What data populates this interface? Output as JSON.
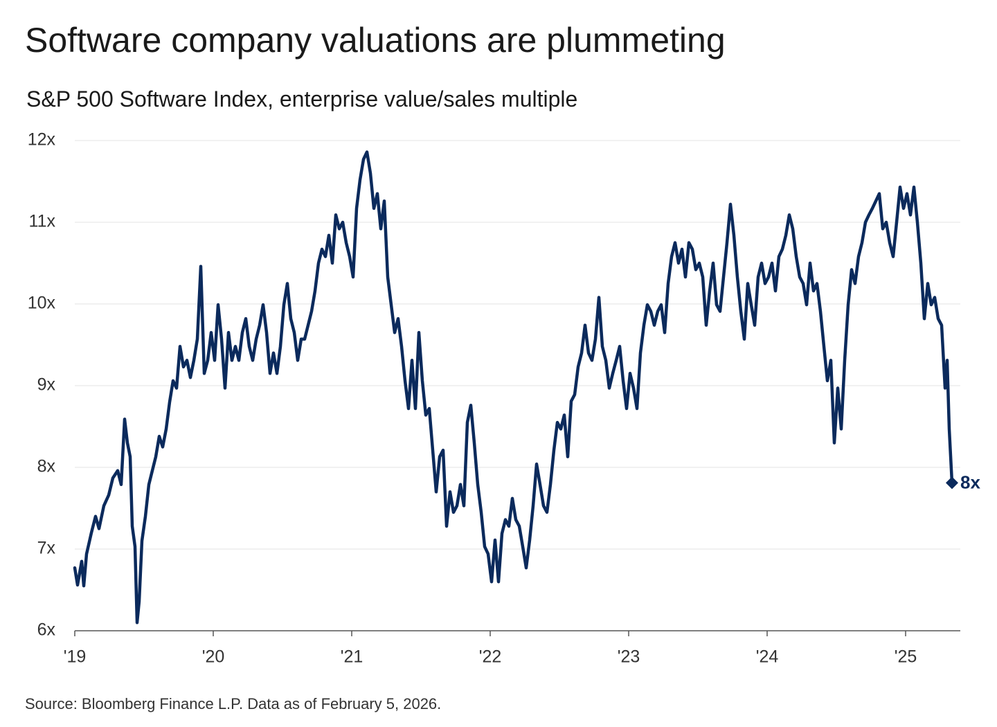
{
  "chart_data": {
    "type": "line",
    "title": "Software company valuations are plummeting",
    "subtitle": "S&P 500 Software Index, enterprise value/sales multiple",
    "source": "Source: Bloomberg Finance L.P. Data as of February 5, 2026.",
    "color": "#0b2a5c",
    "grid": true,
    "xlim": [
      2019,
      2025.395
    ],
    "xticks": [
      {
        "value": 2019,
        "label": "'19"
      },
      {
        "value": 2020,
        "label": "'20"
      },
      {
        "value": 2021,
        "label": "'21"
      },
      {
        "value": 2022,
        "label": "'22"
      },
      {
        "value": 2023,
        "label": "'23"
      },
      {
        "value": 2024,
        "label": "'24"
      },
      {
        "value": 2025,
        "label": "'25"
      }
    ],
    "ylim": [
      6,
      12
    ],
    "yticks": [
      {
        "value": 6,
        "label": "6x"
      },
      {
        "value": 7,
        "label": "7x"
      },
      {
        "value": 8,
        "label": "8x"
      },
      {
        "value": 9,
        "label": "9x"
      },
      {
        "value": 10,
        "label": "10x"
      },
      {
        "value": 11,
        "label": "11x"
      },
      {
        "value": 12,
        "label": "12x"
      }
    ],
    "x": [
      2019,
      2019.02,
      2019.05,
      2019.065,
      2019.085,
      2019.12,
      2019.15,
      2019.175,
      2019.21,
      2019.245,
      2019.275,
      2019.31,
      2019.335,
      2019.36,
      2019.38,
      2019.4,
      2019.415,
      2019.435,
      2019.45,
      2019.465,
      2019.485,
      2019.51,
      2019.535,
      2019.56,
      2019.585,
      2019.61,
      2019.635,
      2019.66,
      2019.685,
      2019.71,
      2019.735,
      2019.76,
      2019.785,
      2019.81,
      2019.835,
      2019.86,
      2019.885,
      2019.91,
      2019.935,
      2019.96,
      2019.985,
      2020.01,
      2020.035,
      2020.06,
      2020.085,
      2020.11,
      2020.135,
      2020.16,
      2020.185,
      2020.21,
      2020.235,
      2020.26,
      2020.285,
      2020.31,
      2020.335,
      2020.36,
      2020.385,
      2020.41,
      2020.435,
      2020.46,
      2020.485,
      2020.51,
      2020.535,
      2020.56,
      2020.585,
      2020.61,
      2020.635,
      2020.66,
      2020.685,
      2020.71,
      2020.735,
      2020.76,
      2020.785,
      2020.81,
      2020.835,
      2020.86,
      2020.885,
      2020.91,
      2020.935,
      2020.96,
      2020.985,
      2021.01,
      2021.035,
      2021.06,
      2021.085,
      2021.11,
      2021.135,
      2021.16,
      2021.185,
      2021.21,
      2021.235,
      2021.26,
      2021.285,
      2021.31,
      2021.335,
      2021.36,
      2021.385,
      2021.41,
      2021.435,
      2021.46,
      2021.485,
      2021.51,
      2021.535,
      2021.56,
      2021.585,
      2021.61,
      2021.635,
      2021.66,
      2021.685,
      2021.71,
      2021.735,
      2021.76,
      2021.785,
      2021.81,
      2021.835,
      2021.86,
      2021.885,
      2021.91,
      2021.935,
      2021.96,
      2021.985,
      2022.01,
      2022.035,
      2022.06,
      2022.085,
      2022.11,
      2022.135,
      2022.16,
      2022.185,
      2022.21,
      2022.235,
      2022.26,
      2022.285,
      2022.31,
      2022.335,
      2022.36,
      2022.385,
      2022.41,
      2022.435,
      2022.46,
      2022.485,
      2022.51,
      2022.535,
      2022.56,
      2022.585,
      2022.61,
      2022.635,
      2022.66,
      2022.685,
      2022.71,
      2022.735,
      2022.76,
      2022.785,
      2022.81,
      2022.835,
      2022.86,
      2022.885,
      2022.91,
      2022.935,
      2022.96,
      2022.985,
      2023.01,
      2023.035,
      2023.06,
      2023.085,
      2023.11,
      2023.135,
      2023.16,
      2023.185,
      2023.21,
      2023.235,
      2023.26,
      2023.285,
      2023.31,
      2023.335,
      2023.36,
      2023.385,
      2023.41,
      2023.435,
      2023.46,
      2023.485,
      2023.51,
      2023.535,
      2023.56,
      2023.585,
      2023.61,
      2023.635,
      2023.66,
      2023.685,
      2023.71,
      2023.735,
      2023.76,
      2023.785,
      2023.81,
      2023.835,
      2023.86,
      2023.885,
      2023.91,
      2023.935,
      2023.96,
      2023.985,
      2024.01,
      2024.035,
      2024.06,
      2024.085,
      2024.11,
      2024.135,
      2024.16,
      2024.185,
      2024.21,
      2024.235,
      2024.26,
      2024.285,
      2024.31,
      2024.335,
      2024.36,
      2024.385,
      2024.41,
      2024.435,
      2024.46,
      2024.485,
      2024.51,
      2024.535,
      2024.56,
      2024.585,
      2024.61,
      2024.635,
      2024.66,
      2024.685,
      2024.71,
      2024.735,
      2024.76,
      2024.785,
      2024.81,
      2024.835,
      2024.86,
      2024.885,
      2024.91,
      2024.935,
      2024.96,
      2024.985,
      2025.01,
      2025.035,
      2025.06,
      2025.085,
      2025.11,
      2025.135,
      2025.16,
      2025.185,
      2025.21,
      2025.235,
      2025.26,
      2025.285,
      2025.3,
      2025.315,
      2025.335
    ],
    "values": [
      6.77,
      6.56,
      6.85,
      6.55,
      6.94,
      7.2,
      7.4,
      7.25,
      7.53,
      7.66,
      7.87,
      7.96,
      7.79,
      8.59,
      8.3,
      8.13,
      7.28,
      7.03,
      6.1,
      6.36,
      7.1,
      7.4,
      7.79,
      7.96,
      8.13,
      8.38,
      8.25,
      8.47,
      8.8,
      9.06,
      8.97,
      9.48,
      9.23,
      9.31,
      9.1,
      9.31,
      9.57,
      10.46,
      9.15,
      9.31,
      9.65,
      9.31,
      9.99,
      9.57,
      8.97,
      9.65,
      9.31,
      9.48,
      9.31,
      9.65,
      9.82,
      9.48,
      9.31,
      9.57,
      9.74,
      9.99,
      9.65,
      9.15,
      9.4,
      9.15,
      9.48,
      9.99,
      10.25,
      9.82,
      9.65,
      9.31,
      9.57,
      9.57,
      9.74,
      9.91,
      10.16,
      10.5,
      10.67,
      10.58,
      10.84,
      10.5,
      11.09,
      10.92,
      11.0,
      10.75,
      10.58,
      10.33,
      11.17,
      11.52,
      11.77,
      11.86,
      11.6,
      11.17,
      11.35,
      10.92,
      11.26,
      10.33,
      9.99,
      9.65,
      9.82,
      9.48,
      9.06,
      8.72,
      9.31,
      8.72,
      9.65,
      9.06,
      8.64,
      8.72,
      8.21,
      7.7,
      8.13,
      8.21,
      7.28,
      7.7,
      7.45,
      7.53,
      7.79,
      7.53,
      8.55,
      8.76,
      8.3,
      7.79,
      7.45,
      7.03,
      6.94,
      6.6,
      7.11,
      6.6,
      7.19,
      7.36,
      7.28,
      7.62,
      7.36,
      7.28,
      7.03,
      6.77,
      7.11,
      7.53,
      8.04,
      7.79,
      7.53,
      7.45,
      7.79,
      8.21,
      8.55,
      8.47,
      8.64,
      8.13,
      8.81,
      8.89,
      9.23,
      9.4,
      9.74,
      9.4,
      9.31,
      9.57,
      10.08,
      9.48,
      9.31,
      8.97,
      9.15,
      9.31,
      9.48,
      9.06,
      8.72,
      9.15,
      8.97,
      8.72,
      9.4,
      9.74,
      9.99,
      9.91,
      9.74,
      9.91,
      9.99,
      9.65,
      10.25,
      10.58,
      10.75,
      10.5,
      10.67,
      10.33,
      10.75,
      10.67,
      10.42,
      10.5,
      10.33,
      9.74,
      10.16,
      10.5,
      9.99,
      9.91,
      10.33,
      10.75,
      11.22,
      10.84,
      10.33,
      9.91,
      9.57,
      10.25,
      9.99,
      9.74,
      10.33,
      10.5,
      10.25,
      10.33,
      10.5,
      10.16,
      10.58,
      10.67,
      10.84,
      11.09,
      10.92,
      10.58,
      10.33,
      10.25,
      9.99,
      10.5,
      10.16,
      10.25,
      9.91,
      9.48,
      9.06,
      9.31,
      8.3,
      8.97,
      8.47,
      9.31,
      9.99,
      10.42,
      10.25,
      10.58,
      10.75,
      11.0,
      11.09,
      11.17,
      11.26,
      11.35,
      10.92,
      11.0,
      10.75,
      10.58,
      11.0,
      11.43,
      11.17,
      11.35,
      11.09,
      11.43,
      11.0,
      10.5,
      9.82,
      10.25,
      9.99,
      10.08,
      9.82,
      9.74,
      8.97,
      9.31,
      8.47,
      7.81
    ],
    "value_labels": [
      null,
      null,
      null,
      null,
      null,
      null,
      null,
      null,
      null,
      null,
      null,
      null,
      null,
      null,
      null,
      null,
      null,
      null,
      null,
      null,
      null,
      null,
      null,
      null,
      null,
      null,
      null,
      null,
      null,
      null,
      null,
      null,
      null,
      null,
      null,
      null,
      null,
      null,
      null,
      null,
      null,
      null,
      null,
      null,
      null,
      null,
      null,
      null,
      null,
      null,
      null,
      null,
      null,
      null,
      null,
      null,
      null,
      null,
      null,
      null,
      null,
      null,
      null,
      null,
      null,
      null,
      null,
      null,
      null,
      null,
      null,
      null,
      null,
      null,
      null,
      null,
      null,
      null,
      null,
      null,
      null,
      null,
      null,
      null,
      null,
      null,
      null,
      null,
      null,
      null,
      null,
      null,
      null,
      null,
      null,
      null,
      null,
      null,
      null,
      null,
      null,
      null,
      null,
      null,
      null,
      null,
      null,
      null,
      null,
      null,
      null,
      null,
      null,
      null,
      null,
      null,
      null,
      null,
      null,
      null,
      null,
      null,
      null,
      null,
      null,
      null,
      null,
      null,
      null,
      null,
      null,
      null,
      null,
      null,
      null,
      null,
      null,
      null,
      null,
      null,
      null,
      null,
      null,
      null,
      null,
      null,
      null,
      null,
      null,
      null,
      null,
      null,
      null,
      null,
      null,
      null,
      null,
      null,
      null,
      null,
      null,
      null,
      null,
      null,
      null,
      null,
      null,
      null,
      null,
      null,
      null,
      null,
      null,
      null,
      null,
      null,
      null,
      null,
      null,
      null,
      null,
      null,
      null,
      null,
      null,
      null,
      null,
      null,
      null,
      null,
      null,
      null,
      null,
      null,
      null,
      null,
      null,
      null,
      null,
      null,
      null,
      null,
      null,
      null,
      null,
      null,
      null,
      null,
      null,
      null,
      null,
      null,
      null,
      null,
      null,
      null,
      null,
      null,
      null,
      null,
      null,
      null,
      null,
      null,
      null,
      null,
      null,
      null,
      null,
      null,
      null,
      null,
      null,
      null,
      null,
      null,
      null,
      null,
      null,
      null,
      null,
      null,
      null,
      null,
      null,
      null,
      null,
      null,
      null,
      null,
      null,
      null,
      null,
      null,
      null,
      "8x"
    ]
  }
}
